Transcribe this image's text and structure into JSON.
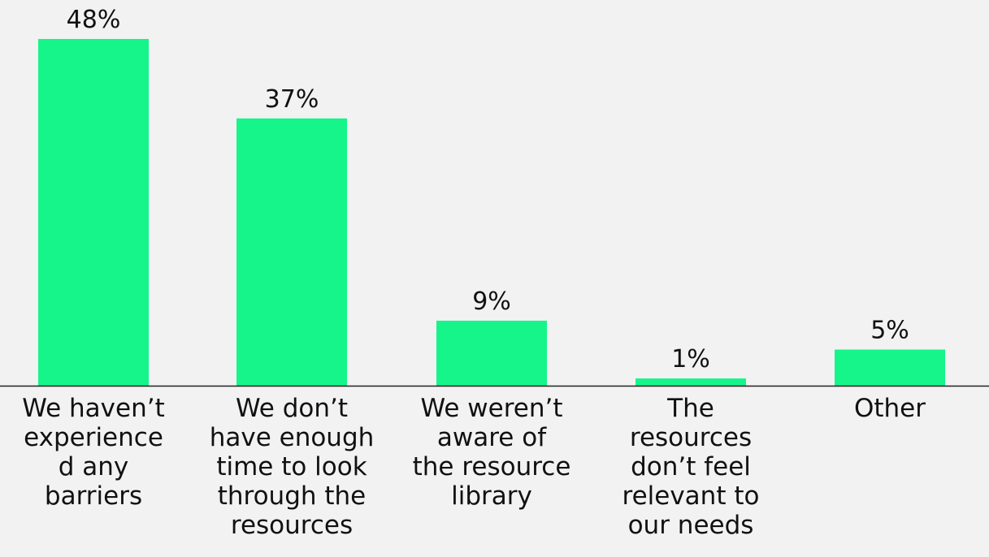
{
  "colors": {
    "bar": "#16f58a",
    "background": "#f2f2f2",
    "axis": "#222222",
    "text": "#111111"
  },
  "chart_data": {
    "type": "bar",
    "title": "",
    "xlabel": "",
    "ylabel": "",
    "ylim": [
      0,
      48
    ],
    "grid": false,
    "legend": "none",
    "categories": [
      "We haven't experience d any barriers",
      "We don't have enough time to look through the resources",
      "We weren't aware of the resource library",
      "The resources don't feel relevant to our needs",
      "Other"
    ],
    "category_lines": [
      [
        "We haven’t",
        "experience",
        "d any",
        "barriers"
      ],
      [
        "We don’t",
        "have enough",
        "time to look",
        "through the",
        "resources"
      ],
      [
        "We weren’t",
        "aware of",
        "the resource",
        "library"
      ],
      [
        "The",
        "resources",
        "don’t feel",
        "relevant to",
        "our needs"
      ],
      [
        "Other"
      ]
    ],
    "values": [
      48,
      37,
      9,
      1,
      5
    ],
    "value_labels": [
      "48%",
      "37%",
      "9%",
      "1%",
      "5%"
    ]
  }
}
